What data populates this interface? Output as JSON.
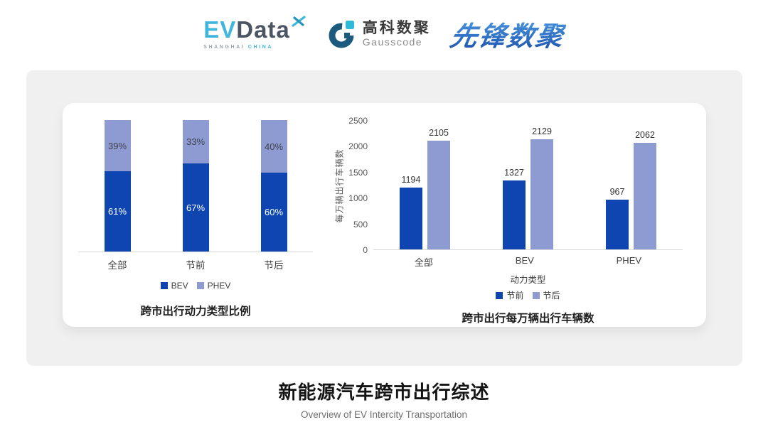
{
  "header": {
    "evdata": {
      "ev": "EV",
      "data": "Data",
      "sub_left": "SHANGHAI",
      "sub_right": "CHINA"
    },
    "gausscode": {
      "cn": "高科数聚",
      "en": "Gausscode"
    },
    "pioneer": {
      "text": "先锋数聚"
    }
  },
  "footer": {
    "title": "新能源汽车跨市出行综述",
    "subtitle": "Overview of EV Intercity Transportation"
  },
  "colors": {
    "series_dark_blue": "#0e45b0",
    "series_light_blue": "#8e9bd3",
    "panel_gray": "#f0f0f0",
    "axis_line": "#d9d9d9",
    "logo_cyan": "#3fb6dc",
    "logo_navy": "#1c5b7e"
  },
  "chart_data": [
    {
      "type": "bar",
      "variant": "stacked_100_percent",
      "title": "跨市出行动力类型比例",
      "categories": [
        "全部",
        "节前",
        "节后"
      ],
      "series": [
        {
          "name": "BEV",
          "color": "#0e45b0",
          "label_color": "#ffffff",
          "values": [
            61,
            67,
            60
          ]
        },
        {
          "name": "PHEV",
          "color": "#8e9bd3",
          "label_color": "#3d4248",
          "values": [
            39,
            33,
            40
          ]
        }
      ],
      "value_suffix": "%",
      "ylim": [
        0,
        100
      ],
      "legend_position": "bottom",
      "grid": false
    },
    {
      "type": "bar",
      "variant": "grouped",
      "title": "跨市出行每万辆出行车辆数",
      "xlabel": "动力类型",
      "ylabel": "每万辆出行车辆数",
      "categories": [
        "全部",
        "BEV",
        "PHEV"
      ],
      "series": [
        {
          "name": "节前",
          "color": "#0e45b0",
          "values": [
            1194,
            1327,
            967
          ]
        },
        {
          "name": "节后",
          "color": "#8e9bd3",
          "values": [
            2105,
            2129,
            2062
          ]
        }
      ],
      "ylim": [
        0,
        2500
      ],
      "yticks": [
        0,
        500,
        1000,
        1500,
        2000,
        2500
      ],
      "legend_position": "bottom",
      "grid": false
    }
  ]
}
